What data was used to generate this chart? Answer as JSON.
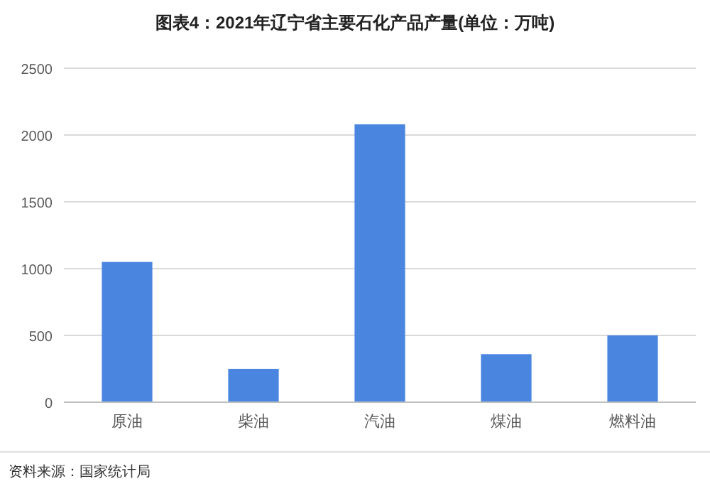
{
  "chart_data": {
    "type": "bar",
    "title": "图表4：2021年辽宁省主要石化产品产量(单位：万吨)",
    "categories": [
      "原油",
      "柴油",
      "汽油",
      "煤油",
      "燃料油"
    ],
    "values": [
      1050,
      250,
      2080,
      360,
      500
    ],
    "color": "#4a86e0",
    "ylim": [
      0,
      2500
    ],
    "yticks": [
      0,
      500,
      1000,
      1500,
      2000,
      2500
    ],
    "grid": "y",
    "annotations": [
      "资料来源：国家统计局"
    ]
  }
}
